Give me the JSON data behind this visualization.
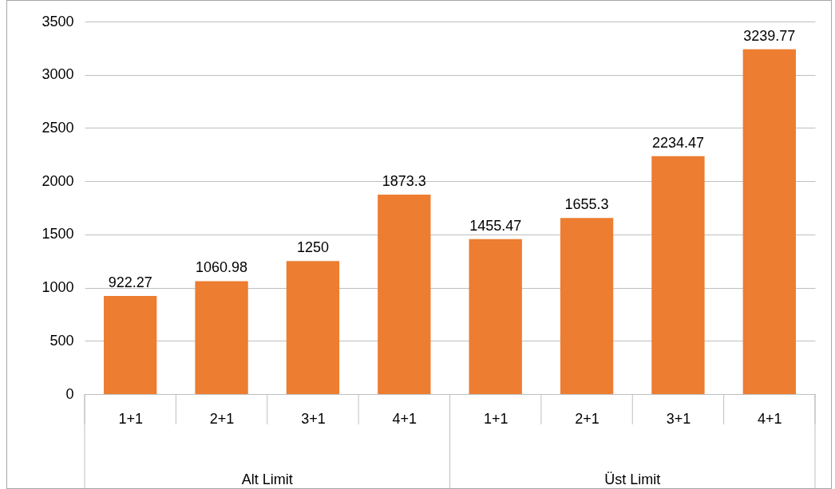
{
  "chart_data": {
    "type": "bar",
    "categories": [
      "1+1",
      "2+1",
      "3+1",
      "4+1",
      "1+1",
      "2+1",
      "3+1",
      "4+1"
    ],
    "values": [
      922.27,
      1060.98,
      1250,
      1873.3,
      1455.47,
      1655.3,
      2234.47,
      3239.77
    ],
    "color": "#ed7d31",
    "ylim": [
      0,
      3500
    ],
    "yticks": [
      0,
      500,
      1000,
      1500,
      2000,
      2500,
      3000,
      3500
    ],
    "grid": "y",
    "data_labels": true,
    "annotations": [
      "Alt Limit",
      "Üst Limit"
    ]
  }
}
